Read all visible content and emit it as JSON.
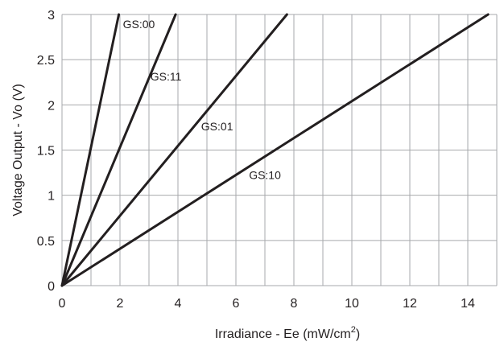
{
  "chart_data": {
    "type": "line",
    "title": "",
    "xlabel": "Irradiance - Ee (mW/cm",
    "xlabel_superscript": "2",
    "xlabel_suffix": ")",
    "ylabel": "Voltage Output - Vo (V)",
    "xlim": [
      0,
      15
    ],
    "ylim": [
      0,
      3
    ],
    "x_ticks": [
      0,
      2,
      4,
      6,
      8,
      10,
      12,
      14
    ],
    "x_tick_labels": [
      "0",
      "2",
      "4",
      "6",
      "8",
      "10",
      "12",
      "14"
    ],
    "y_ticks": [
      0,
      0.5,
      1,
      1.5,
      2,
      2.5,
      3
    ],
    "y_tick_labels": [
      "0",
      "0.5",
      "1",
      "1.5",
      "2",
      "2.5",
      "3"
    ],
    "x_grid": [
      0,
      1,
      2,
      3,
      4,
      5,
      6,
      7,
      8,
      9,
      10,
      11,
      12,
      13,
      14,
      15
    ],
    "y_grid": [
      0,
      0.5,
      1,
      1.5,
      2,
      2.5,
      3
    ],
    "grid": true,
    "legend": "none",
    "series": [
      {
        "name": "GS:00",
        "x": [
          0,
          1.96
        ],
        "y": [
          0,
          3
        ],
        "label_at": [
          2.1,
          2.85
        ]
      },
      {
        "name": "GS:11",
        "x": [
          0,
          3.92
        ],
        "y": [
          0,
          3
        ],
        "label_at": [
          3.05,
          2.27
        ]
      },
      {
        "name": "GS:01",
        "x": [
          0,
          7.76
        ],
        "y": [
          0,
          3
        ],
        "label_at": [
          4.8,
          1.72
        ]
      },
      {
        "name": "GS:10",
        "x": [
          0,
          14.7
        ],
        "y": [
          0,
          3
        ],
        "label_at": [
          6.45,
          1.18
        ]
      }
    ],
    "line_color": "#231f20",
    "grid_color": "#a7a9ac"
  }
}
